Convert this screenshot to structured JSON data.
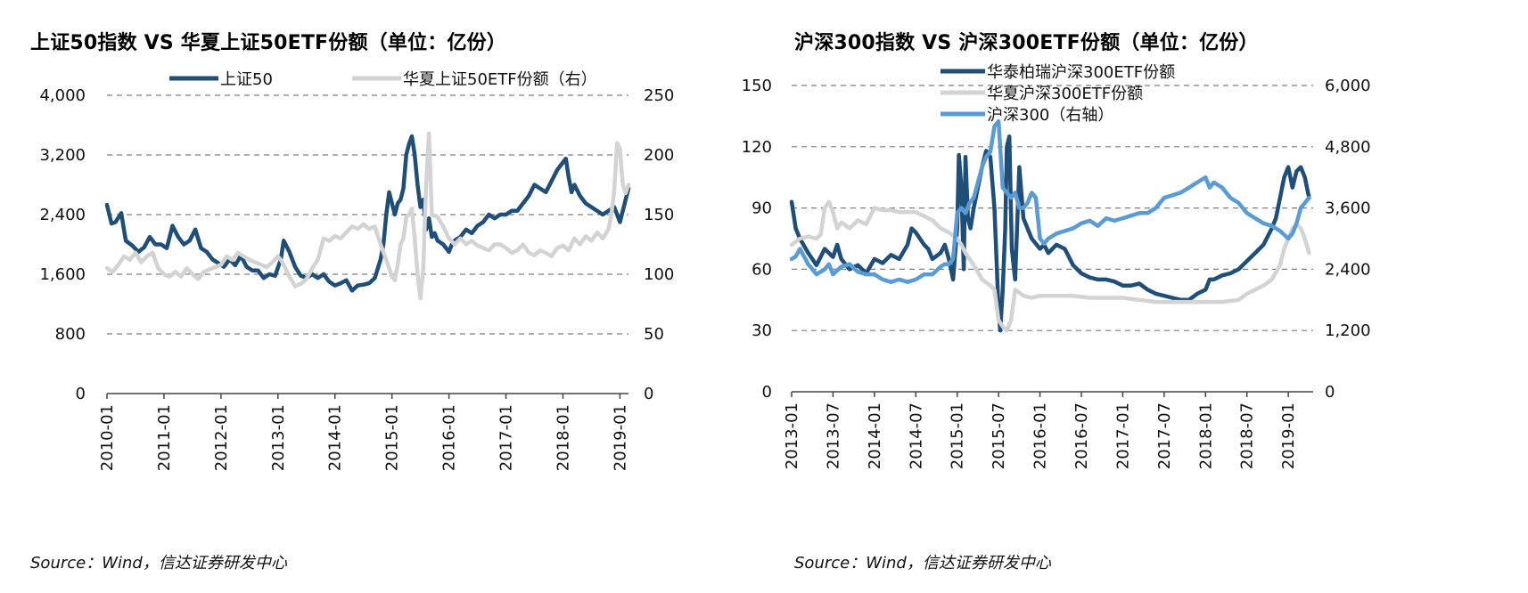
{
  "source_label": "Source：Wind，信达证券研发中心",
  "colors": {
    "dark_blue": "#1F4E79",
    "light_gray": "#D3D3D3",
    "mid_blue": "#5B9BD5",
    "grid": "#7F7F7F"
  },
  "chart_data": [
    {
      "type": "line",
      "title": "上证50指数 VS 华夏上证50ETF份额（单位：亿份）",
      "x_ticks": [
        "2010-01",
        "2011-01",
        "2012-01",
        "2013-01",
        "2014-01",
        "2015-01",
        "2016-01",
        "2017-01",
        "2018-01",
        "2019-01"
      ],
      "x_range": [
        2010.0,
        2019.15
      ],
      "y_left": {
        "ticks": [
          "0",
          "800",
          "1,600",
          "2,400",
          "3,200",
          "4,000"
        ],
        "lim": [
          0,
          4000
        ]
      },
      "y_right": {
        "ticks": [
          "0",
          "50",
          "100",
          "150",
          "200",
          "250"
        ],
        "lim": [
          0,
          250
        ]
      },
      "legend_position": "top-center",
      "grid": true,
      "series": [
        {
          "name": "上证50",
          "color": "#1F4E79",
          "axis": "left",
          "x": [
            2010.0,
            2010.08,
            2010.15,
            2010.25,
            2010.33,
            2010.45,
            2010.55,
            2010.65,
            2010.75,
            2010.85,
            2010.95,
            2011.05,
            2011.15,
            2011.25,
            2011.35,
            2011.45,
            2011.55,
            2011.65,
            2011.75,
            2011.85,
            2011.95,
            2012.05,
            2012.15,
            2012.25,
            2012.35,
            2012.45,
            2012.55,
            2012.65,
            2012.75,
            2012.85,
            2012.95,
            2013.05,
            2013.1,
            2013.2,
            2013.3,
            2013.4,
            2013.5,
            2013.6,
            2013.7,
            2013.8,
            2013.9,
            2014.0,
            2014.1,
            2014.2,
            2014.3,
            2014.4,
            2014.5,
            2014.6,
            2014.7,
            2014.8,
            2014.85,
            2014.9,
            2014.95,
            2015.0,
            2015.05,
            2015.1,
            2015.15,
            2015.2,
            2015.25,
            2015.3,
            2015.35,
            2015.4,
            2015.45,
            2015.5,
            2015.55,
            2015.6,
            2015.65,
            2015.7,
            2015.75,
            2015.8,
            2015.9,
            2016.0,
            2016.05,
            2016.1,
            2016.2,
            2016.3,
            2016.4,
            2016.5,
            2016.6,
            2016.7,
            2016.8,
            2016.9,
            2017.0,
            2017.1,
            2017.2,
            2017.3,
            2017.4,
            2017.5,
            2017.6,
            2017.7,
            2017.8,
            2017.9,
            2018.0,
            2018.05,
            2018.1,
            2018.15,
            2018.2,
            2018.3,
            2018.4,
            2018.5,
            2018.6,
            2018.7,
            2018.8,
            2018.9,
            2019.0,
            2019.05,
            2019.1,
            2019.15
          ],
          "y": [
            2530,
            2280,
            2300,
            2420,
            2050,
            1980,
            1900,
            1960,
            2100,
            2000,
            2000,
            1950,
            2250,
            2100,
            2000,
            2050,
            2200,
            1950,
            1900,
            1800,
            1750,
            1700,
            1800,
            1720,
            1850,
            1700,
            1650,
            1650,
            1550,
            1600,
            1580,
            1800,
            2050,
            1900,
            1700,
            1580,
            1550,
            1600,
            1550,
            1600,
            1500,
            1450,
            1480,
            1520,
            1380,
            1450,
            1460,
            1480,
            1550,
            1800,
            2000,
            2400,
            2700,
            2550,
            2400,
            2550,
            2600,
            2750,
            3200,
            3350,
            3450,
            3200,
            2800,
            2500,
            2600,
            2200,
            2350,
            2100,
            2150,
            2050,
            2000,
            1900,
            2000,
            2050,
            2100,
            2200,
            2150,
            2250,
            2300,
            2400,
            2350,
            2400,
            2400,
            2450,
            2450,
            2550,
            2650,
            2800,
            2750,
            2700,
            2850,
            3000,
            3100,
            3150,
            2900,
            2700,
            2800,
            2650,
            2550,
            2500,
            2450,
            2400,
            2450,
            2500,
            2300,
            2450,
            2600,
            2750
          ]
        },
        {
          "name": "华夏上证50ETF份额（右）",
          "color": "#D3D3D3",
          "axis": "right",
          "x": [
            2010.0,
            2010.1,
            2010.2,
            2010.3,
            2010.4,
            2010.5,
            2010.6,
            2010.7,
            2010.8,
            2010.9,
            2011.0,
            2011.1,
            2011.2,
            2011.3,
            2011.4,
            2011.5,
            2011.6,
            2011.7,
            2011.8,
            2011.9,
            2012.0,
            2012.1,
            2012.2,
            2012.3,
            2012.4,
            2012.5,
            2012.6,
            2012.7,
            2012.8,
            2012.9,
            2013.0,
            2013.05,
            2013.1,
            2013.2,
            2013.3,
            2013.4,
            2013.5,
            2013.6,
            2013.7,
            2013.8,
            2013.9,
            2014.0,
            2014.1,
            2014.2,
            2014.3,
            2014.4,
            2014.5,
            2014.6,
            2014.7,
            2014.8,
            2014.9,
            2015.0,
            2015.05,
            2015.1,
            2015.15,
            2015.2,
            2015.25,
            2015.3,
            2015.35,
            2015.4,
            2015.45,
            2015.5,
            2015.55,
            2015.6,
            2015.65,
            2015.7,
            2015.8,
            2015.9,
            2016.0,
            2016.1,
            2016.2,
            2016.3,
            2016.4,
            2016.5,
            2016.6,
            2016.7,
            2016.8,
            2016.9,
            2017.0,
            2017.1,
            2017.2,
            2017.3,
            2017.4,
            2017.5,
            2017.6,
            2017.7,
            2017.8,
            2017.9,
            2018.0,
            2018.1,
            2018.2,
            2018.3,
            2018.4,
            2018.5,
            2018.6,
            2018.7,
            2018.8,
            2018.85,
            2018.9,
            2018.95,
            2019.0,
            2019.05,
            2019.1,
            2019.15
          ],
          "y": [
            105,
            102,
            108,
            115,
            112,
            118,
            110,
            115,
            118,
            105,
            100,
            98,
            102,
            98,
            105,
            100,
            96,
            102,
            104,
            106,
            108,
            115,
            112,
            118,
            115,
            112,
            110,
            108,
            106,
            110,
            115,
            112,
            108,
            98,
            90,
            92,
            96,
            105,
            112,
            130,
            128,
            132,
            130,
            135,
            140,
            138,
            142,
            138,
            140,
            125,
            112,
            98,
            95,
            108,
            125,
            130,
            148,
            150,
            155,
            130,
            100,
            80,
            105,
            175,
            218,
            150,
            148,
            140,
            130,
            125,
            130,
            125,
            128,
            124,
            122,
            120,
            125,
            125,
            122,
            118,
            120,
            125,
            118,
            116,
            120,
            118,
            115,
            122,
            124,
            120,
            130,
            125,
            132,
            128,
            135,
            130,
            138,
            150,
            170,
            210,
            205,
            175,
            168,
            175
          ]
        }
      ]
    },
    {
      "type": "line",
      "title": "沪深300指数 VS 沪深300ETF份额（单位：亿份）",
      "x_ticks": [
        "2013-01",
        "2013-07",
        "2014-01",
        "2014-07",
        "2015-01",
        "2015-07",
        "2016-01",
        "2016-07",
        "2017-01",
        "2017-07",
        "2018-01",
        "2018-07",
        "2019-01"
      ],
      "x_range": [
        2013.0,
        2019.3
      ],
      "y_left": {
        "ticks": [
          "0",
          "30",
          "60",
          "90",
          "120",
          "150"
        ],
        "lim": [
          0,
          150
        ]
      },
      "y_right": {
        "ticks": [
          "0",
          "1,200",
          "2,400",
          "3,600",
          "4,800",
          "6,000"
        ],
        "lim": [
          0,
          6000
        ]
      },
      "legend_position": "top-left",
      "grid": true,
      "series": [
        {
          "name": "华泰柏瑞沪深300ETF份额",
          "color": "#1F4E79",
          "axis": "left",
          "x": [
            2013.0,
            2013.05,
            2013.1,
            2013.2,
            2013.3,
            2013.4,
            2013.5,
            2013.55,
            2013.6,
            2013.7,
            2013.8,
            2013.9,
            2014.0,
            2014.1,
            2014.2,
            2014.3,
            2014.4,
            2014.45,
            2014.5,
            2014.55,
            2014.6,
            2014.65,
            2014.7,
            2014.8,
            2014.85,
            2014.9,
            2014.95,
            2015.0,
            2015.02,
            2015.05,
            2015.08,
            2015.1,
            2015.13,
            2015.16,
            2015.2,
            2015.25,
            2015.3,
            2015.35,
            2015.4,
            2015.45,
            2015.5,
            2015.52,
            2015.55,
            2015.58,
            2015.6,
            2015.63,
            2015.66,
            2015.7,
            2015.75,
            2015.8,
            2015.85,
            2015.9,
            2016.0,
            2016.05,
            2016.1,
            2016.2,
            2016.3,
            2016.4,
            2016.5,
            2016.6,
            2016.7,
            2016.8,
            2016.9,
            2017.0,
            2017.1,
            2017.2,
            2017.3,
            2017.4,
            2017.5,
            2017.6,
            2017.7,
            2017.8,
            2017.9,
            2018.0,
            2018.05,
            2018.1,
            2018.2,
            2018.3,
            2018.4,
            2018.5,
            2018.6,
            2018.7,
            2018.8,
            2018.85,
            2018.9,
            2018.95,
            2019.0,
            2019.05,
            2019.1,
            2019.15,
            2019.2,
            2019.25
          ],
          "y": [
            93,
            80,
            75,
            68,
            62,
            70,
            66,
            72,
            65,
            60,
            62,
            58,
            65,
            63,
            67,
            65,
            72,
            80,
            78,
            75,
            72,
            70,
            65,
            68,
            72,
            65,
            55,
            80,
            116,
            100,
            60,
            115,
            85,
            80,
            90,
            100,
            110,
            118,
            115,
            90,
            40,
            30,
            50,
            80,
            120,
            125,
            70,
            55,
            110,
            85,
            80,
            75,
            70,
            72,
            68,
            72,
            70,
            62,
            58,
            56,
            55,
            55,
            54,
            52,
            52,
            53,
            50,
            48,
            47,
            46,
            45,
            45,
            48,
            50,
            55,
            55,
            57,
            58,
            60,
            64,
            68,
            72,
            80,
            85,
            95,
            105,
            110,
            100,
            108,
            110,
            105,
            95
          ]
        },
        {
          "name": "华夏沪深300ETF份额",
          "color": "#D3D3D3",
          "axis": "left",
          "x": [
            2013.0,
            2013.1,
            2013.2,
            2013.3,
            2013.35,
            2013.4,
            2013.45,
            2013.5,
            2013.55,
            2013.6,
            2013.7,
            2013.8,
            2013.9,
            2014.0,
            2014.1,
            2014.2,
            2014.3,
            2014.4,
            2014.5,
            2014.6,
            2014.7,
            2014.8,
            2014.9,
            2015.0,
            2015.05,
            2015.1,
            2015.2,
            2015.3,
            2015.4,
            2015.45,
            2015.5,
            2015.55,
            2015.6,
            2015.65,
            2015.7,
            2015.8,
            2015.9,
            2016.0,
            2016.2,
            2016.4,
            2016.6,
            2016.8,
            2017.0,
            2017.2,
            2017.4,
            2017.6,
            2017.8,
            2018.0,
            2018.2,
            2018.4,
            2018.5,
            2018.6,
            2018.7,
            2018.8,
            2018.9,
            2018.95,
            2019.0,
            2019.05,
            2019.1,
            2019.15,
            2019.2,
            2019.25
          ],
          "y": [
            72,
            75,
            76,
            75,
            77,
            90,
            93,
            88,
            80,
            83,
            80,
            84,
            82,
            90,
            89,
            89,
            88,
            88,
            88,
            86,
            84,
            80,
            78,
            75,
            72,
            68,
            62,
            55,
            52,
            50,
            35,
            32,
            30,
            35,
            50,
            47,
            46,
            47,
            47,
            47,
            46,
            46,
            46,
            45,
            44,
            44,
            44,
            44,
            44,
            45,
            48,
            50,
            52,
            55,
            62,
            70,
            75,
            80,
            82,
            80,
            75,
            68
          ]
        },
        {
          "name": "沪深300（右轴）",
          "color": "#5B9BD5",
          "axis": "right",
          "x": [
            2013.0,
            2013.05,
            2013.1,
            2013.2,
            2013.3,
            2013.4,
            2013.45,
            2013.5,
            2013.6,
            2013.7,
            2013.8,
            2013.9,
            2014.0,
            2014.1,
            2014.2,
            2014.3,
            2014.4,
            2014.5,
            2014.6,
            2014.7,
            2014.8,
            2014.85,
            2014.9,
            2014.95,
            2015.0,
            2015.05,
            2015.1,
            2015.15,
            2015.2,
            2015.25,
            2015.3,
            2015.35,
            2015.4,
            2015.45,
            2015.5,
            2015.55,
            2015.6,
            2015.65,
            2015.7,
            2015.75,
            2015.8,
            2015.85,
            2015.9,
            2015.95,
            2016.0,
            2016.05,
            2016.1,
            2016.2,
            2016.3,
            2016.4,
            2016.5,
            2016.6,
            2016.7,
            2016.8,
            2016.9,
            2017.0,
            2017.1,
            2017.2,
            2017.3,
            2017.4,
            2017.5,
            2017.6,
            2017.7,
            2017.8,
            2017.9,
            2018.0,
            2018.05,
            2018.1,
            2018.2,
            2018.3,
            2018.4,
            2018.5,
            2018.6,
            2018.7,
            2018.8,
            2018.9,
            2019.0,
            2019.05,
            2019.1,
            2019.15,
            2019.2,
            2019.25
          ],
          "y": [
            2600,
            2650,
            2800,
            2500,
            2300,
            2400,
            2500,
            2300,
            2450,
            2500,
            2350,
            2300,
            2300,
            2200,
            2150,
            2200,
            2150,
            2200,
            2300,
            2300,
            2450,
            2500,
            2500,
            2600,
            3500,
            3600,
            3500,
            3700,
            3800,
            4100,
            4400,
            4600,
            4700,
            5200,
            5300,
            4000,
            3900,
            3800,
            3900,
            3600,
            3600,
            3700,
            3900,
            3800,
            3000,
            2900,
            3000,
            3100,
            3150,
            3200,
            3300,
            3350,
            3250,
            3400,
            3350,
            3400,
            3450,
            3500,
            3500,
            3600,
            3800,
            3850,
            3900,
            4000,
            4100,
            4200,
            4000,
            4100,
            4000,
            3800,
            3700,
            3500,
            3400,
            3300,
            3250,
            3150,
            3000,
            3100,
            3300,
            3600,
            3700,
            3800
          ]
        }
      ]
    }
  ]
}
